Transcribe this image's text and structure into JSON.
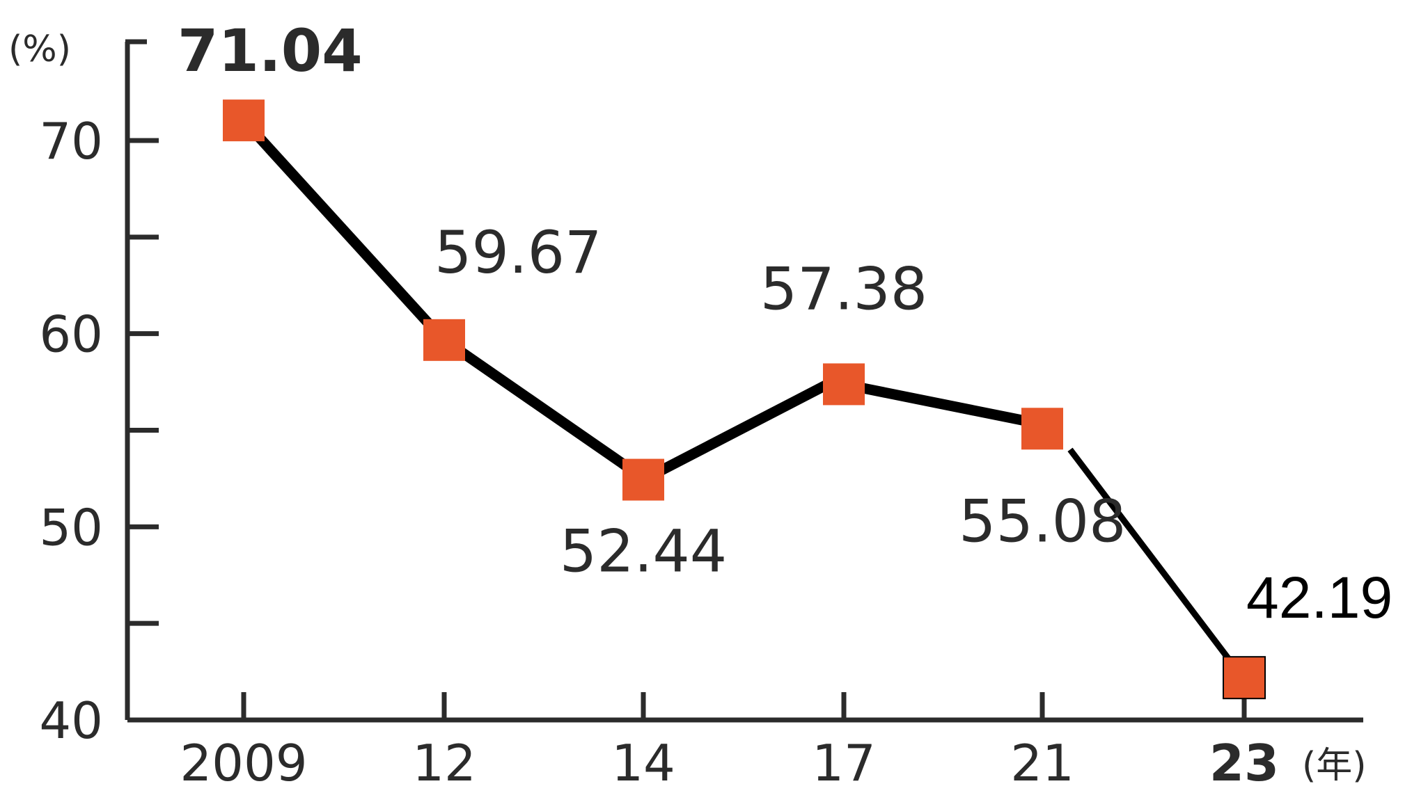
{
  "chart_data": {
    "type": "line",
    "x": [
      "2009",
      "12",
      "14",
      "17",
      "21",
      "23"
    ],
    "values": [
      71.04,
      59.67,
      52.44,
      57.38,
      55.08,
      42.19
    ],
    "value_labels": [
      "71.04",
      "59.67",
      "52.44",
      "57.38",
      "55.08",
      "42.19"
    ],
    "y_unit": "(%)",
    "x_unit": "(年)",
    "y_ticks": [
      "40",
      "50",
      "60",
      "70"
    ],
    "ylim": [
      40,
      72
    ],
    "grid": false,
    "colors": {
      "marker": "#e8572a",
      "line": "#000000",
      "axis": "#2b2b2b"
    }
  }
}
